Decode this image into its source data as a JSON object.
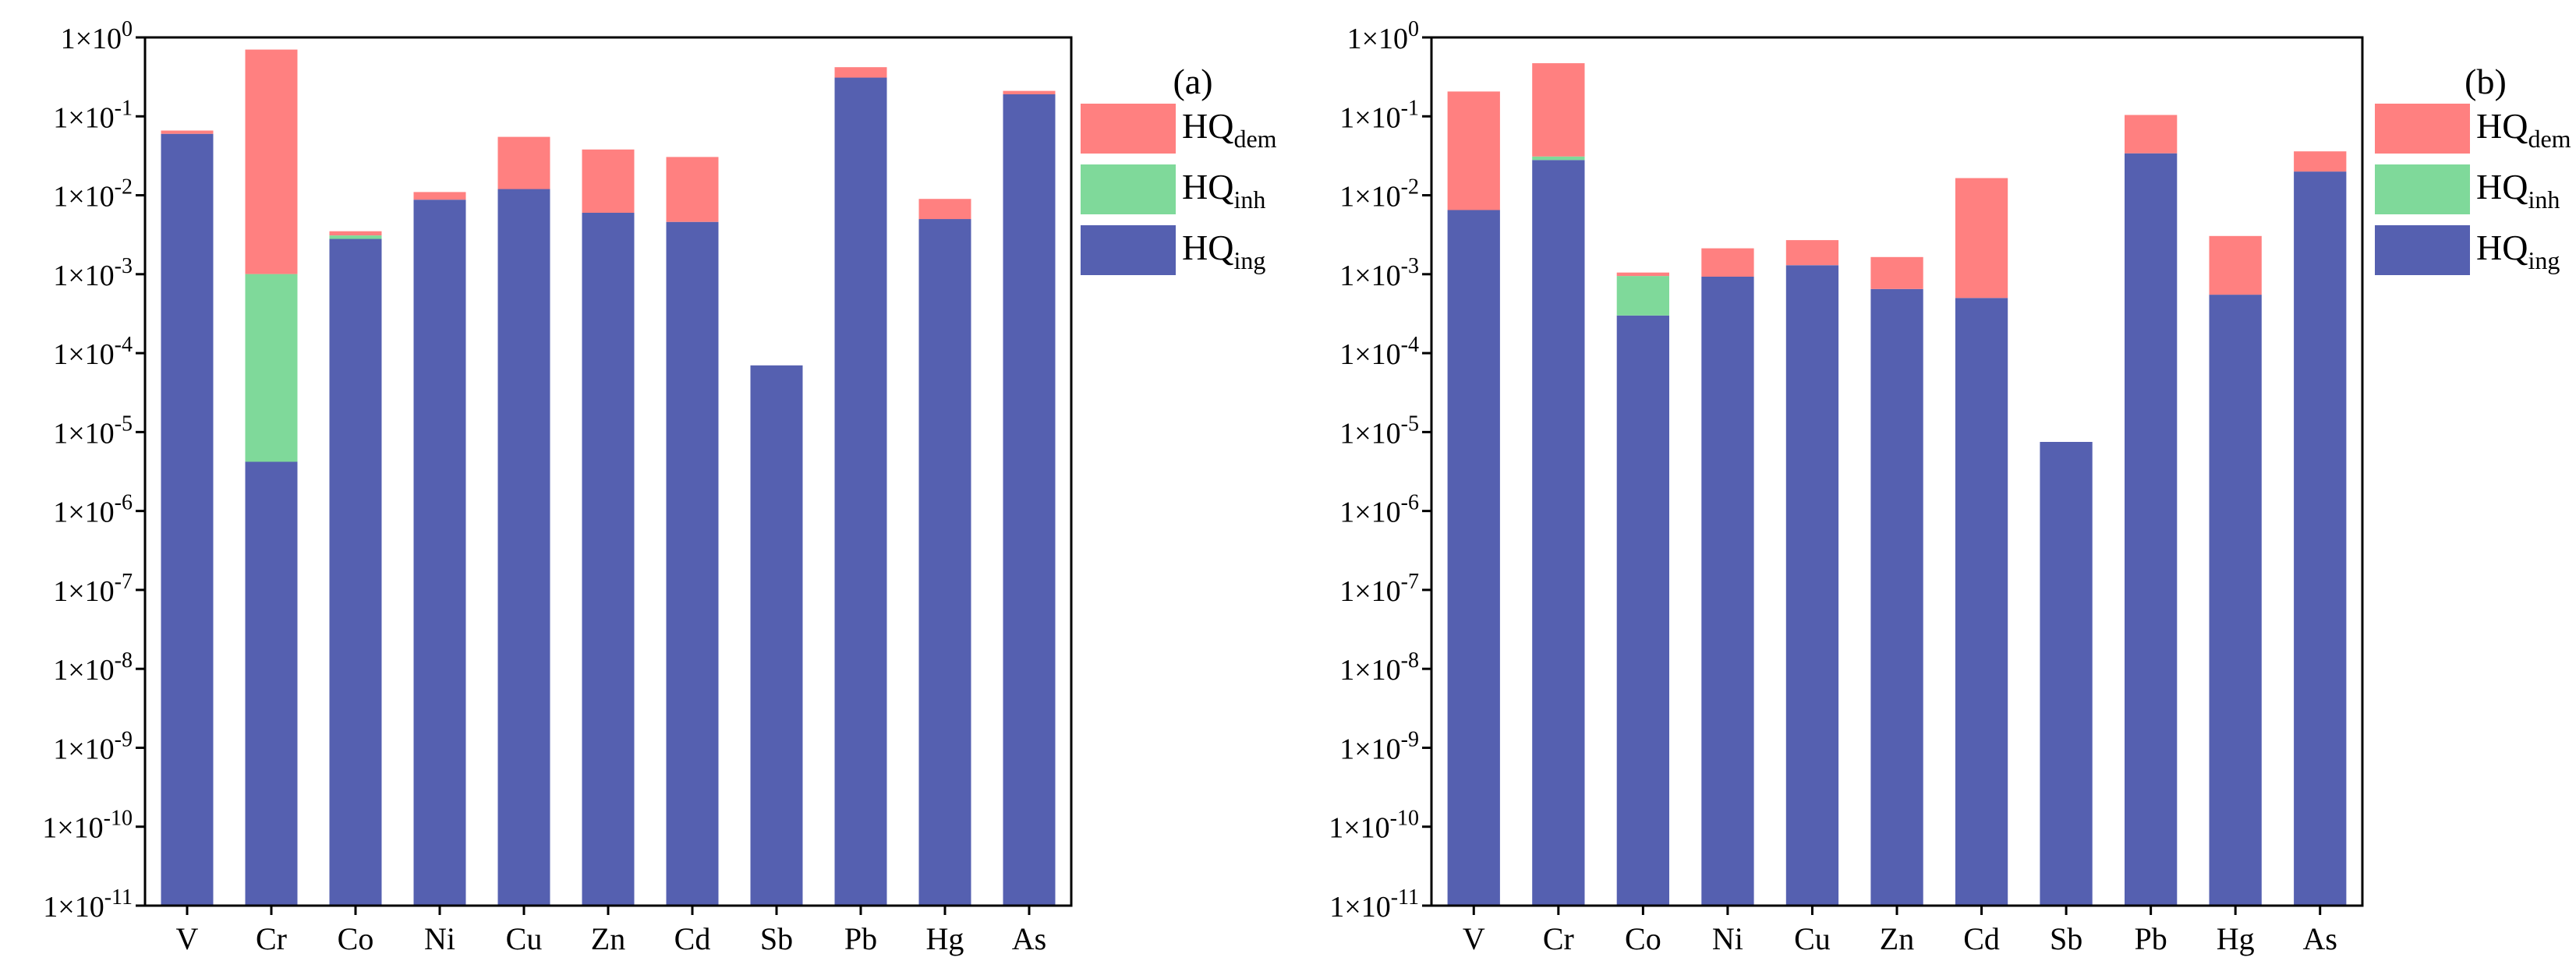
{
  "colors": {
    "HQ_ing": "#5560b0",
    "HQ_inh": "#7fd99a",
    "HQ_dem": "#ff8080"
  },
  "chart_data": [
    {
      "type": "bar",
      "stacked": true,
      "yscale": "log",
      "panel_label": "(a)",
      "categories": [
        "V",
        "Cr",
        "Co",
        "Ni",
        "Cu",
        "Zn",
        "Cd",
        "Sb",
        "Pb",
        "Hg",
        "As"
      ],
      "ylim": [
        1e-11,
        1
      ],
      "ytick_exponents": [
        0,
        -1,
        -2,
        -3,
        -4,
        -5,
        -6,
        -7,
        -8,
        -9,
        -10,
        -11
      ],
      "ytick_base": "1×10",
      "legend_position": "top-right, outside plot",
      "series": [
        {
          "name": "HQ",
          "sub": "ing",
          "key": "HQ_ing",
          "values": [
            0.06,
            4.2e-06,
            0.0028,
            0.0088,
            0.012,
            0.006,
            0.0046,
            7e-05,
            0.31,
            0.005,
            0.19
          ]
        },
        {
          "name": "HQ",
          "sub": "inh",
          "key": "HQ_inh",
          "values": [
            0.0,
            0.001,
            0.0003,
            0.0,
            0.0,
            0.0,
            0.0,
            0.0,
            0.0,
            0.0,
            0.0
          ]
        },
        {
          "name": "HQ",
          "sub": "dem",
          "key": "HQ_dem",
          "values": [
            0.006,
            0.7,
            0.0004,
            0.0022,
            0.043,
            0.032,
            0.026,
            0.0,
            0.11,
            0.004,
            0.02
          ]
        }
      ],
      "legend": [
        {
          "name": "HQ",
          "sub": "dem",
          "key": "HQ_dem"
        },
        {
          "name": "HQ",
          "sub": "inh",
          "key": "HQ_inh"
        },
        {
          "name": "HQ",
          "sub": "ing",
          "key": "HQ_ing"
        }
      ]
    },
    {
      "type": "bar",
      "stacked": true,
      "yscale": "log",
      "panel_label": "(b)",
      "categories": [
        "V",
        "Cr",
        "Co",
        "Ni",
        "Cu",
        "Zn",
        "Cd",
        "Sb",
        "Pb",
        "Hg",
        "As"
      ],
      "ylim": [
        1e-11,
        1
      ],
      "ytick_exponents": [
        0,
        -1,
        -2,
        -3,
        -4,
        -5,
        -6,
        -7,
        -8,
        -9,
        -10,
        -11
      ],
      "ytick_base": "1×10",
      "legend_position": "top-right, outside plot",
      "series": [
        {
          "name": "HQ",
          "sub": "ing",
          "key": "HQ_ing",
          "values": [
            0.0065,
            0.028,
            0.0003,
            0.00093,
            0.0013,
            0.00065,
            0.0005,
            7.5e-06,
            0.034,
            0.00055,
            0.02
          ]
        },
        {
          "name": "HQ",
          "sub": "inh",
          "key": "HQ_inh",
          "values": [
            0.0,
            0.003,
            0.00065,
            0.0,
            0.0,
            0.0,
            0.0,
            0.0,
            0.0,
            0.0,
            0.0
          ]
        },
        {
          "name": "HQ",
          "sub": "dem",
          "key": "HQ_dem",
          "values": [
            0.2,
            0.44,
            0.0001,
            0.0012,
            0.0014,
            0.001,
            0.016,
            0.0,
            0.07,
            0.0025,
            0.016
          ]
        }
      ],
      "legend": [
        {
          "name": "HQ",
          "sub": "dem",
          "key": "HQ_dem"
        },
        {
          "name": "HQ",
          "sub": "inh",
          "key": "HQ_inh"
        },
        {
          "name": "HQ",
          "sub": "ing",
          "key": "HQ_ing"
        }
      ]
    }
  ]
}
